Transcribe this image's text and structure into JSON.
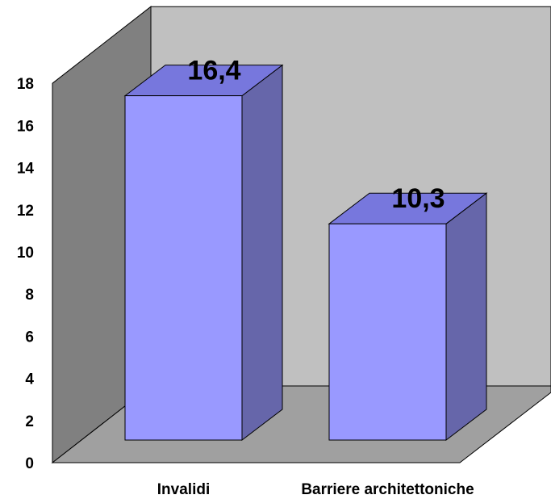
{
  "chart_data": {
    "type": "bar",
    "style": "3d-column",
    "categories": [
      "Invalidi",
      "Barriere architettoniche"
    ],
    "values": [
      16.4,
      10.3
    ],
    "data_labels": [
      "16,4",
      "10,3"
    ],
    "ylim": [
      0,
      18
    ],
    "yticks": [
      "0",
      "2",
      "4",
      "6",
      "8",
      "10",
      "12",
      "14",
      "16",
      "18"
    ],
    "title": "",
    "xlabel": "",
    "ylabel": "",
    "grid": false,
    "legend": "none",
    "colors": {
      "bar_front": "#9999ff",
      "bar_top": "#7777dd",
      "bar_side": "#6666aa",
      "back_wall": "#c0c0c0",
      "side_wall": "#808080",
      "floor": "#a0a0a0"
    }
  }
}
